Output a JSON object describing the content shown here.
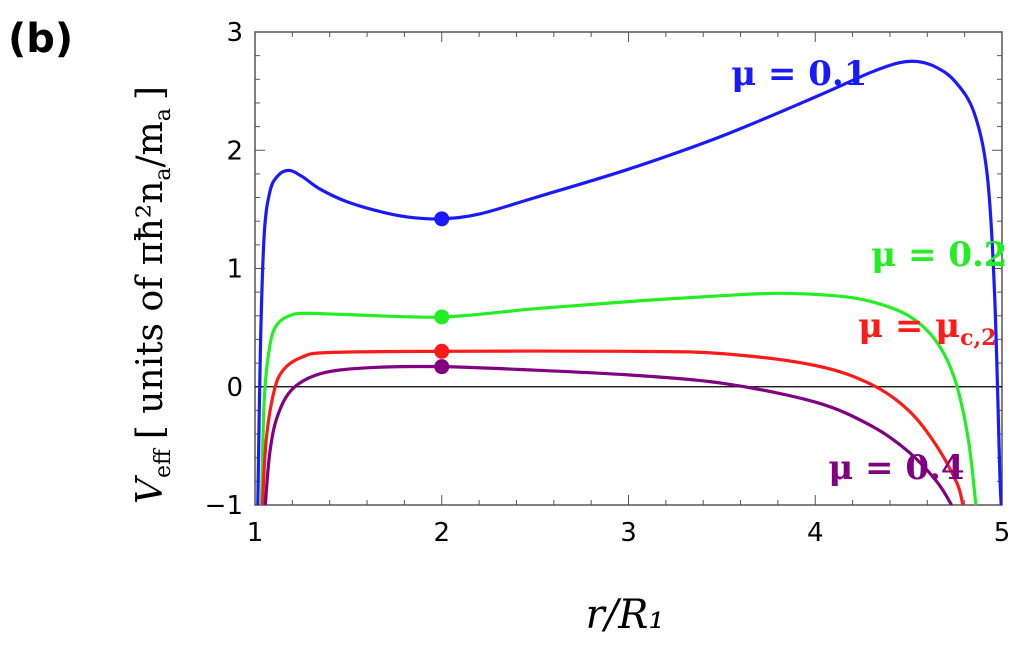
{
  "panel_label": "(b)",
  "chart_data": {
    "type": "line",
    "xlabel": "r/R₁",
    "ylabel": "V_eff [ units of πħ²n_a/m_a ]",
    "ylabel_main": "V",
    "ylabel_sub": "eff",
    "ylabel_units": "[ units of πħ²n",
    "ylabel_units_sub": "a",
    "ylabel_units_tail": "/m",
    "ylabel_units_tail_sub": "a",
    "ylabel_close": "]",
    "xlim": [
      1,
      5
    ],
    "ylim": [
      -1,
      3
    ],
    "x_ticks": [
      1,
      2,
      3,
      4,
      5
    ],
    "y_ticks": [
      -1,
      0,
      1,
      2,
      3
    ],
    "x_tick_labels": [
      "1",
      "2",
      "3",
      "4",
      "5"
    ],
    "y_tick_labels": [
      "−1",
      "0",
      "1",
      "2",
      "3"
    ],
    "zero_line": true,
    "series": [
      {
        "name": "μ = 0.1",
        "color": "#1a1aff",
        "label_pos": [
          3.55,
          2.55
        ],
        "marker": [
          2,
          1.42
        ],
        "points": [
          [
            1.015,
            -1.0
          ],
          [
            1.03,
            0.4
          ],
          [
            1.05,
            1.3
          ],
          [
            1.08,
            1.65
          ],
          [
            1.12,
            1.78
          ],
          [
            1.18,
            1.83
          ],
          [
            1.25,
            1.78
          ],
          [
            1.35,
            1.67
          ],
          [
            1.5,
            1.56
          ],
          [
            1.7,
            1.47
          ],
          [
            1.85,
            1.43
          ],
          [
            2.0,
            1.42
          ],
          [
            2.2,
            1.46
          ],
          [
            2.5,
            1.6
          ],
          [
            3.0,
            1.84
          ],
          [
            3.5,
            2.12
          ],
          [
            4.0,
            2.45
          ],
          [
            4.3,
            2.66
          ],
          [
            4.45,
            2.74
          ],
          [
            4.55,
            2.75
          ],
          [
            4.65,
            2.7
          ],
          [
            4.75,
            2.58
          ],
          [
            4.85,
            2.32
          ],
          [
            4.92,
            1.8
          ],
          [
            4.96,
            0.8
          ],
          [
            4.99,
            -0.8
          ],
          [
            5.0,
            -1.0
          ]
        ]
      },
      {
        "name": "μ = 0.2",
        "color": "#22ee22",
        "label_pos": [
          4.3,
          1.02
        ],
        "marker": [
          2,
          0.59
        ],
        "points": [
          [
            1.035,
            -1.0
          ],
          [
            1.05,
            -0.1
          ],
          [
            1.08,
            0.35
          ],
          [
            1.12,
            0.53
          ],
          [
            1.2,
            0.61
          ],
          [
            1.3,
            0.62
          ],
          [
            1.5,
            0.61
          ],
          [
            2.0,
            0.59
          ],
          [
            2.5,
            0.66
          ],
          [
            3.0,
            0.72
          ],
          [
            3.5,
            0.77
          ],
          [
            3.8,
            0.79
          ],
          [
            4.1,
            0.77
          ],
          [
            4.3,
            0.72
          ],
          [
            4.5,
            0.6
          ],
          [
            4.65,
            0.38
          ],
          [
            4.75,
            0.05
          ],
          [
            4.82,
            -0.45
          ],
          [
            4.86,
            -1.0
          ]
        ]
      },
      {
        "name": "μ = μ",
        "name_sub": "c,2",
        "color": "#ff1a1a",
        "label_pos": [
          4.23,
          0.42
        ],
        "marker": [
          2,
          0.3
        ],
        "points": [
          [
            1.04,
            -1.0
          ],
          [
            1.06,
            -0.45
          ],
          [
            1.1,
            -0.05
          ],
          [
            1.15,
            0.14
          ],
          [
            1.25,
            0.25
          ],
          [
            1.4,
            0.29
          ],
          [
            2.0,
            0.3
          ],
          [
            3.0,
            0.3
          ],
          [
            3.5,
            0.28
          ],
          [
            4.0,
            0.18
          ],
          [
            4.3,
            0.02
          ],
          [
            4.5,
            -0.2
          ],
          [
            4.65,
            -0.5
          ],
          [
            4.76,
            -0.82
          ],
          [
            4.79,
            -1.0
          ]
        ]
      },
      {
        "name": "μ = 0.4",
        "color": "#800080",
        "label_pos": [
          4.07,
          -0.78
        ],
        "marker": [
          2,
          0.17
        ],
        "points": [
          [
            1.055,
            -1.0
          ],
          [
            1.08,
            -0.55
          ],
          [
            1.12,
            -0.25
          ],
          [
            1.2,
            -0.02
          ],
          [
            1.35,
            0.11
          ],
          [
            1.6,
            0.16
          ],
          [
            2.0,
            0.17
          ],
          [
            2.5,
            0.14
          ],
          [
            3.0,
            0.1
          ],
          [
            3.5,
            0.03
          ],
          [
            4.0,
            -0.13
          ],
          [
            4.3,
            -0.33
          ],
          [
            4.5,
            -0.55
          ],
          [
            4.65,
            -0.8
          ],
          [
            4.73,
            -1.0
          ]
        ]
      }
    ]
  }
}
